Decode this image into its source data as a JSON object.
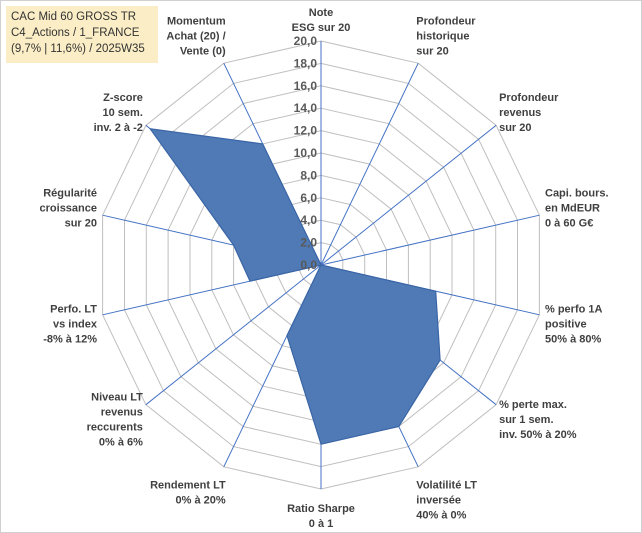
{
  "title_lines": [
    "CAC Mid 60 GROSS TR",
    "C4_Actions / 1_FRANCE",
    "(9,7% | 11,6%) / 2025W35"
  ],
  "chart_data": {
    "type": "radar",
    "axes": [
      {
        "label": [
          "Note",
          "ESG sur 20"
        ]
      },
      {
        "label": [
          "Profondeur",
          "historique",
          "sur 20"
        ]
      },
      {
        "label": [
          "Profondeur",
          "revenus",
          "sur 20"
        ]
      },
      {
        "label": [
          "Capi. bours.",
          "en MdEUR",
          "0 à 60 G€"
        ]
      },
      {
        "label": [
          "% perfo 1A",
          "positive",
          "50% à 80%"
        ]
      },
      {
        "label": [
          "% perte max.",
          "sur 1 sem.",
          "inv. 50% à 20%"
        ]
      },
      {
        "label": [
          "Volatilité LT",
          "inversée",
          "40% à 0%"
        ]
      },
      {
        "label": [
          "Ratio Sharpe",
          "0 à 1"
        ]
      },
      {
        "label": [
          "Rendement LT",
          "0% à 20%"
        ]
      },
      {
        "label": [
          "Niveau LT",
          "revenus",
          "reccurents",
          "0% à 6%"
        ]
      },
      {
        "label": [
          "Perfo. LT",
          "vs index",
          "-8% à 12%"
        ]
      },
      {
        "label": [
          "Régularité",
          "croissance",
          "sur 20"
        ]
      },
      {
        "label": [
          "Z-score",
          "10 sem.",
          "inv. 2 à -2"
        ]
      },
      {
        "label": [
          "Momentum",
          "Achat (20) /",
          "Vente (0)"
        ]
      }
    ],
    "values": [
      0,
      0,
      0,
      0,
      10.5,
      13.6,
      16.0,
      16.0,
      7.0,
      0,
      6.5,
      8.0,
      19.5,
      12.0
    ],
    "rmin": 0,
    "rmax": 20,
    "ticks": [
      "0,0",
      "2,0",
      "4,0",
      "6,0",
      "8,0",
      "10,0",
      "12,0",
      "14,0",
      "16,0",
      "18,0",
      "20,0"
    ],
    "grid": true,
    "colors": {
      "fill": "#4f7ab6",
      "stroke": "#3a65a6",
      "grid": "#bfbfbf",
      "spoke": "#4472c4"
    }
  }
}
